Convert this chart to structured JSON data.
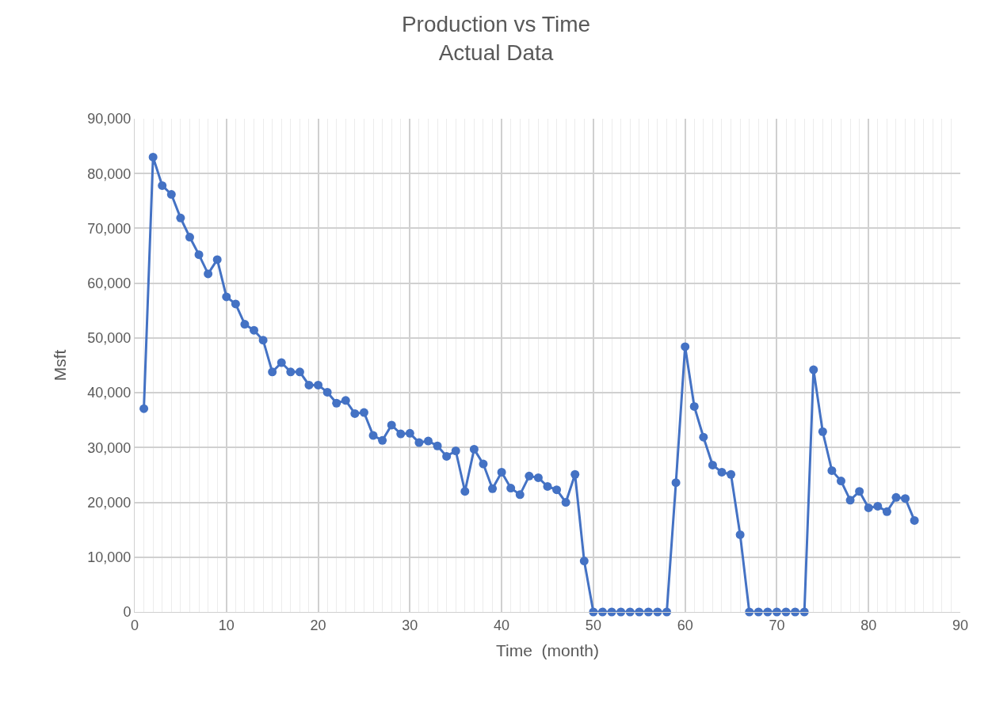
{
  "chart_data": {
    "type": "line",
    "title": "Production vs Time",
    "subtitle": "Actual Data",
    "xlabel": "Time  (month)",
    "ylabel": "Msft",
    "x": [
      1,
      2,
      3,
      4,
      5,
      6,
      7,
      8,
      9,
      10,
      11,
      12,
      13,
      14,
      15,
      16,
      17,
      18,
      19,
      20,
      21,
      22,
      23,
      24,
      25,
      26,
      27,
      28,
      29,
      30,
      31,
      32,
      33,
      34,
      35,
      36,
      37,
      38,
      39,
      40,
      41,
      42,
      43,
      44,
      45,
      46,
      47,
      48,
      49,
      50,
      51,
      52,
      53,
      54,
      55,
      56,
      57,
      58,
      59,
      60,
      61,
      62,
      63,
      64,
      65,
      66,
      67,
      68,
      69,
      70,
      71,
      72,
      73,
      74,
      75,
      76,
      77,
      78,
      79,
      80,
      81,
      82,
      83,
      84,
      85
    ],
    "series": [
      {
        "color": "#4472c4",
        "values": [
          37100,
          83000,
          77800,
          76200,
          71900,
          68400,
          65200,
          61700,
          64300,
          57500,
          56200,
          52500,
          51400,
          49600,
          43800,
          45500,
          43800,
          43800,
          41400,
          41400,
          40100,
          38100,
          38600,
          36200,
          36400,
          32200,
          31300,
          34100,
          32500,
          32600,
          30900,
          31200,
          30300,
          28400,
          29400,
          22000,
          29700,
          27000,
          22500,
          25500,
          22600,
          21400,
          24800,
          24500,
          22900,
          22300,
          20000,
          25100,
          9300,
          0,
          0,
          0,
          0,
          0,
          0,
          0,
          0,
          0,
          23600,
          48400,
          37500,
          31900,
          26800,
          25500,
          25100,
          14100,
          0,
          0,
          0,
          0,
          0,
          0,
          0,
          44200,
          32900,
          25800,
          23900,
          20400,
          22000,
          19000,
          19300,
          18300,
          20900,
          20700,
          16700
        ]
      }
    ],
    "xlim": [
      0,
      90
    ],
    "xticks": [
      0,
      10,
      20,
      30,
      40,
      50,
      60,
      70,
      80,
      90
    ],
    "ylim": [
      0,
      90000
    ],
    "yticks": [
      {
        "value": 0,
        "label": "0"
      },
      {
        "value": 10000,
        "label": "10,000"
      },
      {
        "value": 20000,
        "label": "20,000"
      },
      {
        "value": 30000,
        "label": "30,000"
      },
      {
        "value": 40000,
        "label": "40,000"
      },
      {
        "value": 50000,
        "label": "50,000"
      },
      {
        "value": 60000,
        "label": "60,000"
      },
      {
        "value": 70000,
        "label": "70,000"
      },
      {
        "value": 80000,
        "label": "80,000"
      },
      {
        "value": 90000,
        "label": "90,000"
      }
    ],
    "grid": true,
    "marker": "circle",
    "line_style": "solid"
  }
}
